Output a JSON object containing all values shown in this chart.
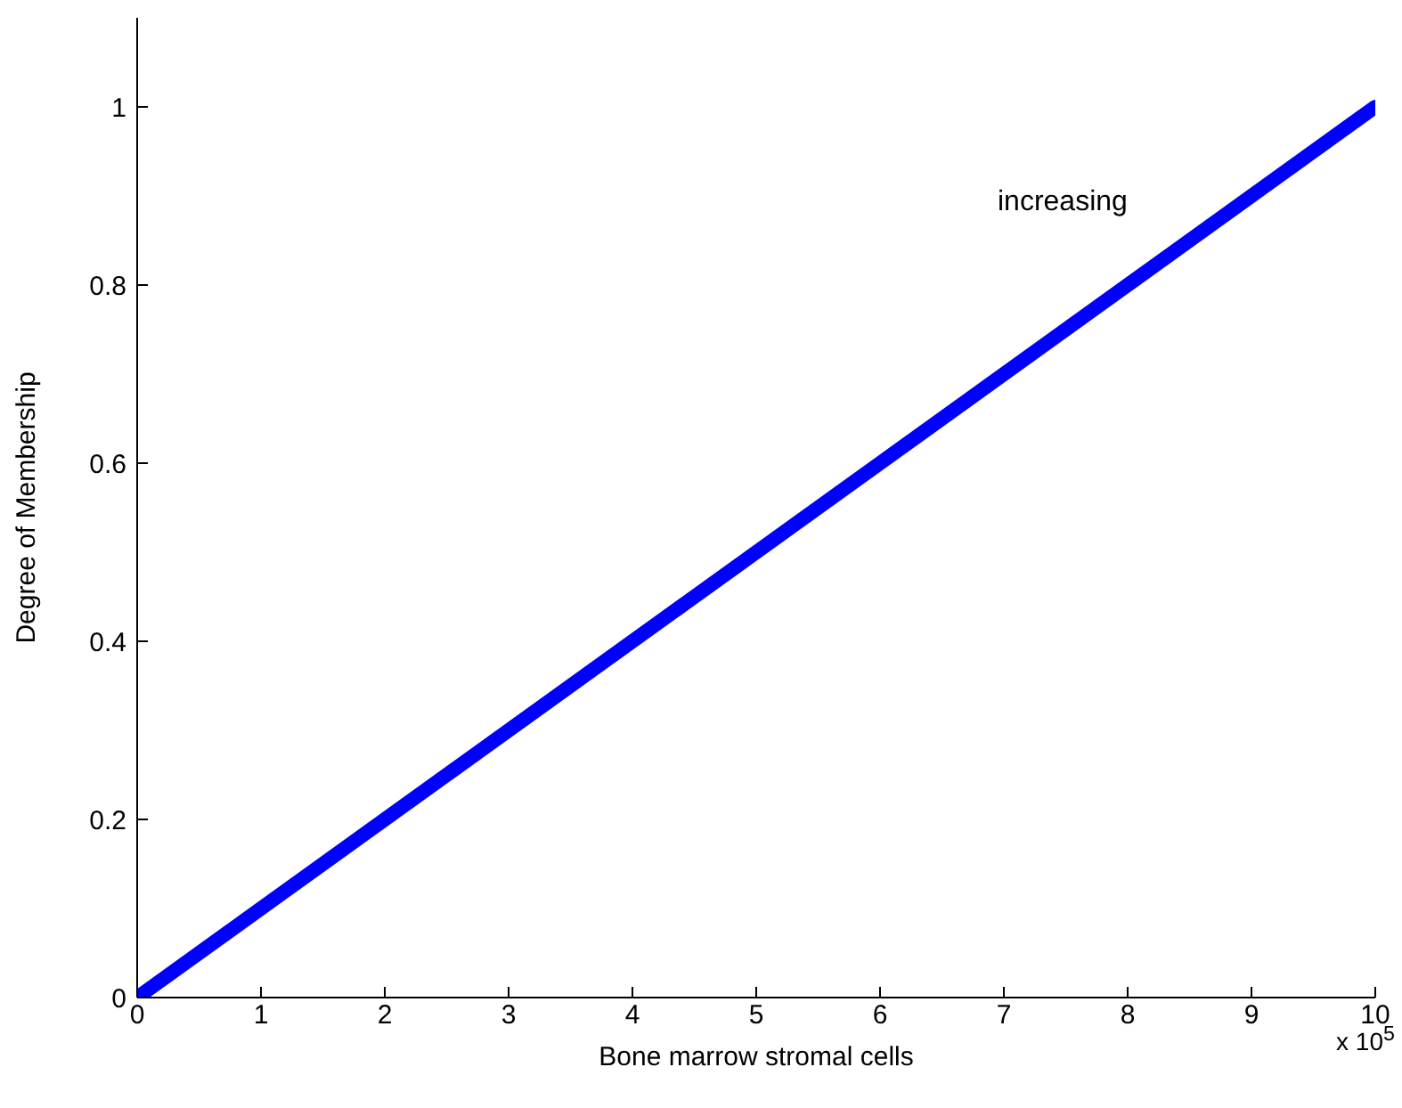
{
  "chart_data": {
    "type": "line",
    "xlabel": "Bone marrow stromal cells",
    "ylabel": "Degree of Membership",
    "x": [
      0,
      10
    ],
    "series": [
      {
        "color": "#0000ff",
        "values": [
          0,
          1
        ]
      }
    ],
    "xlim": [
      0,
      10
    ],
    "xticks": [
      0,
      1,
      2,
      3,
      4,
      5,
      6,
      7,
      8,
      9,
      10
    ],
    "ylim": [
      0,
      1.1
    ],
    "yticks": [
      0,
      0.2,
      0.4,
      0.6,
      0.8,
      1
    ],
    "annotations": [
      "increasing",
      "x 10$^{5}$"
    ],
    "grid": false,
    "legend": false,
    "marker": "none",
    "line_style": "solid"
  }
}
